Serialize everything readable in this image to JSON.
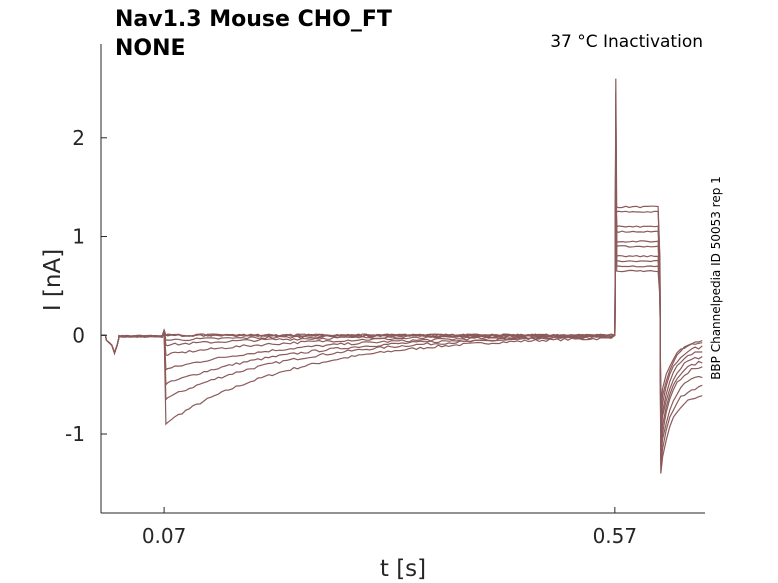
{
  "chart_data": {
    "type": "line",
    "title_line1": "Nav1.3  Mouse  CHO_FT",
    "title_line2": "NONE",
    "condition": "37 °C  Inactivation",
    "side_note": "BBP Channelpedia ID 50053 rep 1",
    "xlabel": "t [s]",
    "ylabel": "I [nA]",
    "xlim": [
      0.0,
      0.67
    ],
    "ylim": [
      -1.8,
      2.95
    ],
    "xticks": [
      {
        "value": 0.07,
        "label": "0.07"
      },
      {
        "value": 0.57,
        "label": "0.57"
      }
    ],
    "yticks": [
      {
        "value": 2,
        "label": "2"
      },
      {
        "value": 1,
        "label": "1"
      },
      {
        "value": 0,
        "label": "0"
      },
      {
        "value": -1,
        "label": "-1"
      }
    ],
    "trace_color": "#8b5a5a",
    "protocol": {
      "pre_step_start": 0.07,
      "test_step_start": 0.57,
      "test_step_end": 0.62,
      "prepulse_peaks": [
        -0.9,
        -0.65,
        -0.5,
        -0.35,
        -0.2,
        -0.1,
        -0.05,
        0.0,
        0.0,
        0.0
      ],
      "test_plateaus": [
        1.3,
        1.25,
        1.1,
        1.05,
        0.95,
        0.9,
        0.8,
        0.75,
        0.7,
        0.65
      ],
      "test_spike_peak": 2.6,
      "tail_min": -1.4,
      "tail_end": [
        -0.6,
        -0.5,
        -0.4,
        -0.3,
        -0.25,
        -0.2,
        -0.15,
        -0.1,
        -0.05,
        -0.05
      ]
    }
  }
}
